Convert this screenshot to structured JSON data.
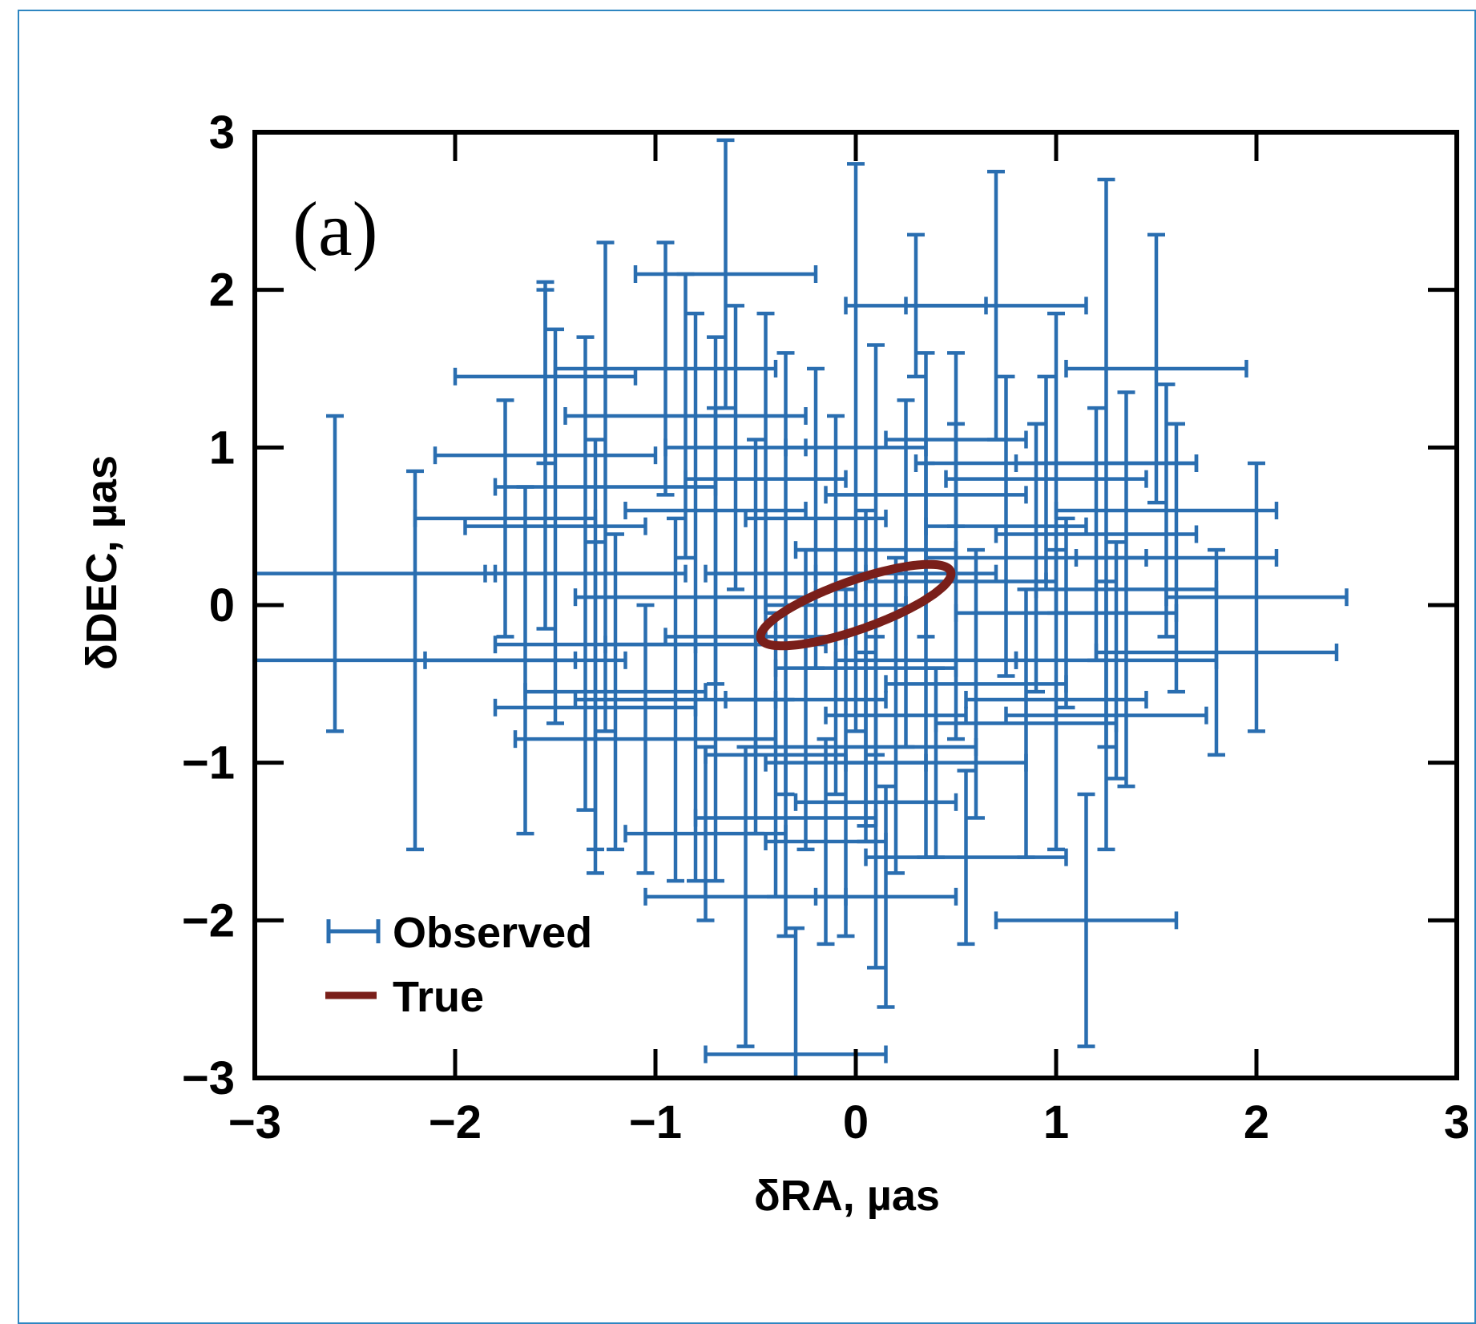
{
  "panel_label": "(a)",
  "colors": {
    "observed": "#2a6eb0",
    "true": "#7a1f1a",
    "axis": "#000000",
    "frame": "#2e86c1"
  },
  "chart_data": {
    "type": "scatter",
    "title": "",
    "xlabel": "δRA, µas",
    "ylabel": "δDEC, µas",
    "xlim": [
      -3,
      3
    ],
    "ylim": [
      -3,
      3
    ],
    "xticks": [
      -3,
      -2,
      -1,
      0,
      1,
      2,
      3
    ],
    "yticks": [
      -3,
      -2,
      -1,
      0,
      1,
      2,
      3
    ],
    "xtick_labels": [
      "−3",
      "−2",
      "−1",
      "0",
      "1",
      "2",
      "3"
    ],
    "ytick_labels": [
      "−3",
      "−2",
      "−1",
      "0",
      "1",
      "2",
      "3"
    ],
    "grid": false,
    "legend": {
      "position": "bottom-left",
      "entries": [
        "Observed",
        "True"
      ]
    },
    "series": [
      {
        "name": "Observed",
        "type": "errorbar",
        "points": [
          {
            "x": -2.6,
            "y": 0.2,
            "xerr": 0.8,
            "yerr": 1.0
          },
          {
            "x": -2.2,
            "y": -0.35,
            "xerr": 0.8,
            "yerr": 1.2
          },
          {
            "x": -1.55,
            "y": 0.95,
            "xerr": 0.55,
            "yerr": 1.1
          },
          {
            "x": -1.5,
            "y": 0.5,
            "xerr": 0.45,
            "yerr": 1.25
          },
          {
            "x": -1.35,
            "y": 0.2,
            "xerr": 0.5,
            "yerr": 1.5
          },
          {
            "x": -1.3,
            "y": -0.25,
            "xerr": 0.5,
            "yerr": 1.3
          },
          {
            "x": -1.3,
            "y": -0.65,
            "xerr": 0.5,
            "yerr": 1.05
          },
          {
            "x": -1.25,
            "y": 0.75,
            "xerr": 0.55,
            "yerr": 1.55
          },
          {
            "x": -1.2,
            "y": -0.55,
            "xerr": 0.45,
            "yerr": 1.0
          },
          {
            "x": -1.05,
            "y": -0.85,
            "xerr": 0.65,
            "yerr": 0.85
          },
          {
            "x": -0.95,
            "y": 1.5,
            "xerr": 0.55,
            "yerr": 0.8
          },
          {
            "x": -0.85,
            "y": 1.2,
            "xerr": 0.6,
            "yerr": 0.9
          },
          {
            "x": -0.9,
            "y": -0.6,
            "xerr": 0.5,
            "yerr": 1.15
          },
          {
            "x": -0.8,
            "y": 0.05,
            "xerr": 0.6,
            "yerr": 1.8
          },
          {
            "x": -0.7,
            "y": 0.6,
            "xerr": 0.45,
            "yerr": 1.1
          },
          {
            "x": -0.7,
            "y": -0.25,
            "xerr": 0.55,
            "yerr": 1.5
          },
          {
            "x": -0.65,
            "y": 2.1,
            "xerr": 0.45,
            "yerr": 0.85
          },
          {
            "x": -0.6,
            "y": 1.0,
            "xerr": 0.35,
            "yerr": 0.9
          },
          {
            "x": -0.55,
            "y": -1.85,
            "xerr": 0.5,
            "yerr": 0.95
          },
          {
            "x": -0.5,
            "y": -0.2,
            "xerr": 0.45,
            "yerr": 1.25
          },
          {
            "x": -0.45,
            "y": 0.8,
            "xerr": 0.4,
            "yerr": 1.05
          },
          {
            "x": -0.4,
            "y": -0.95,
            "xerr": 0.35,
            "yerr": 0.9
          },
          {
            "x": -0.35,
            "y": 0.2,
            "xerr": 0.4,
            "yerr": 1.4
          },
          {
            "x": -0.3,
            "y": -2.85,
            "xerr": 0.45,
            "yerr": 0.8
          },
          {
            "x": -0.25,
            "y": -0.6,
            "xerr": 0.4,
            "yerr": 0.95
          },
          {
            "x": -0.2,
            "y": 0.55,
            "xerr": 0.35,
            "yerr": 0.95
          },
          {
            "x": -0.15,
            "y": -1.5,
            "xerr": 0.3,
            "yerr": 0.65
          },
          {
            "x": -0.1,
            "y": 0.0,
            "xerr": 0.35,
            "yerr": 1.2
          },
          {
            "x": -0.05,
            "y": -1.0,
            "xerr": 0.4,
            "yerr": 1.1
          },
          {
            "x": 0.0,
            "y": 1.0,
            "xerr": 0.35,
            "yerr": 1.8
          },
          {
            "x": 0.05,
            "y": -0.4,
            "xerr": 0.45,
            "yerr": 1.0
          },
          {
            "x": 0.1,
            "y": -1.25,
            "xerr": 0.4,
            "yerr": 1.05
          },
          {
            "x": 0.1,
            "y": 0.35,
            "xerr": 0.4,
            "yerr": 1.3
          },
          {
            "x": 0.15,
            "y": -1.85,
            "xerr": 0.35,
            "yerr": 0.7
          },
          {
            "x": 0.2,
            "y": -0.7,
            "xerr": 0.35,
            "yerr": 1.0
          },
          {
            "x": 0.25,
            "y": 0.2,
            "xerr": 0.45,
            "yerr": 1.1
          },
          {
            "x": 0.3,
            "y": 1.9,
            "xerr": 0.35,
            "yerr": 0.45
          },
          {
            "x": 0.35,
            "y": -0.35,
            "xerr": 0.45,
            "yerr": 1.25
          },
          {
            "x": 0.35,
            "y": 0.7,
            "xerr": 0.5,
            "yerr": 0.9
          },
          {
            "x": 0.4,
            "y": -1.0,
            "xerr": 0.45,
            "yerr": 0.6
          },
          {
            "x": 0.5,
            "y": 0.15,
            "xerr": 0.45,
            "yerr": 1.0
          },
          {
            "x": 0.55,
            "y": -1.6,
            "xerr": 0.5,
            "yerr": 0.55
          },
          {
            "x": 0.6,
            "y": -0.5,
            "xerr": 0.45,
            "yerr": 0.85
          },
          {
            "x": 0.7,
            "y": 1.9,
            "xerr": 0.45,
            "yerr": 0.85
          },
          {
            "x": 0.75,
            "y": 0.5,
            "xerr": 0.4,
            "yerr": 0.95
          },
          {
            "x": 0.85,
            "y": -0.75,
            "xerr": 0.45,
            "yerr": 0.85
          },
          {
            "x": 0.9,
            "y": 0.3,
            "xerr": 0.55,
            "yerr": 0.85
          },
          {
            "x": 0.95,
            "y": 0.8,
            "xerr": 0.5,
            "yerr": 0.65
          },
          {
            "x": 1.0,
            "y": -0.6,
            "xerr": 0.45,
            "yerr": 0.95
          },
          {
            "x": 1.0,
            "y": 0.9,
            "xerr": 0.7,
            "yerr": 0.95
          },
          {
            "x": 1.05,
            "y": -0.05,
            "xerr": 0.55,
            "yerr": 0.6
          },
          {
            "x": 1.15,
            "y": -2.0,
            "xerr": 0.45,
            "yerr": 0.8
          },
          {
            "x": 1.2,
            "y": 0.45,
            "xerr": 0.5,
            "yerr": 0.8
          },
          {
            "x": 1.25,
            "y": 0.9,
            "xerr": 0.45,
            "yerr": 1.8
          },
          {
            "x": 1.3,
            "y": -0.35,
            "xerr": 0.5,
            "yerr": 0.75
          },
          {
            "x": 1.35,
            "y": 0.1,
            "xerr": 0.45,
            "yerr": 1.25
          },
          {
            "x": 1.5,
            "y": 1.5,
            "xerr": 0.45,
            "yerr": 0.85
          },
          {
            "x": 1.55,
            "y": 0.6,
            "xerr": 0.55,
            "yerr": 0.8
          },
          {
            "x": 1.6,
            "y": 0.3,
            "xerr": 0.5,
            "yerr": 0.85
          },
          {
            "x": 1.8,
            "y": -0.3,
            "xerr": 0.6,
            "yerr": 0.65
          },
          {
            "x": 2.0,
            "y": 0.05,
            "xerr": 0.45,
            "yerr": 0.85
          },
          {
            "x": 1.25,
            "y": -0.7,
            "xerr": 0.5,
            "yerr": 0.85
          },
          {
            "x": -0.35,
            "y": -1.35,
            "xerr": 0.45,
            "yerr": 0.75
          },
          {
            "x": 0.05,
            "y": -0.9,
            "xerr": 0.55,
            "yerr": 0.6
          },
          {
            "x": -1.65,
            "y": -0.35,
            "xerr": 0.5,
            "yerr": 1.1
          },
          {
            "x": -1.75,
            "y": 0.55,
            "xerr": 0.45,
            "yerr": 0.75
          },
          {
            "x": -1.55,
            "y": 1.45,
            "xerr": 0.45,
            "yerr": 0.55
          },
          {
            "x": -0.75,
            "y": -1.45,
            "xerr": 0.4,
            "yerr": 0.55
          },
          {
            "x": 0.5,
            "y": 1.05,
            "xerr": 0.35,
            "yerr": 0.55
          }
        ]
      },
      {
        "name": "True",
        "type": "ellipse",
        "center": [
          0.0,
          0.0
        ],
        "semi_major": 0.52,
        "semi_minor": 0.15,
        "angle_deg": 25
      }
    ]
  }
}
